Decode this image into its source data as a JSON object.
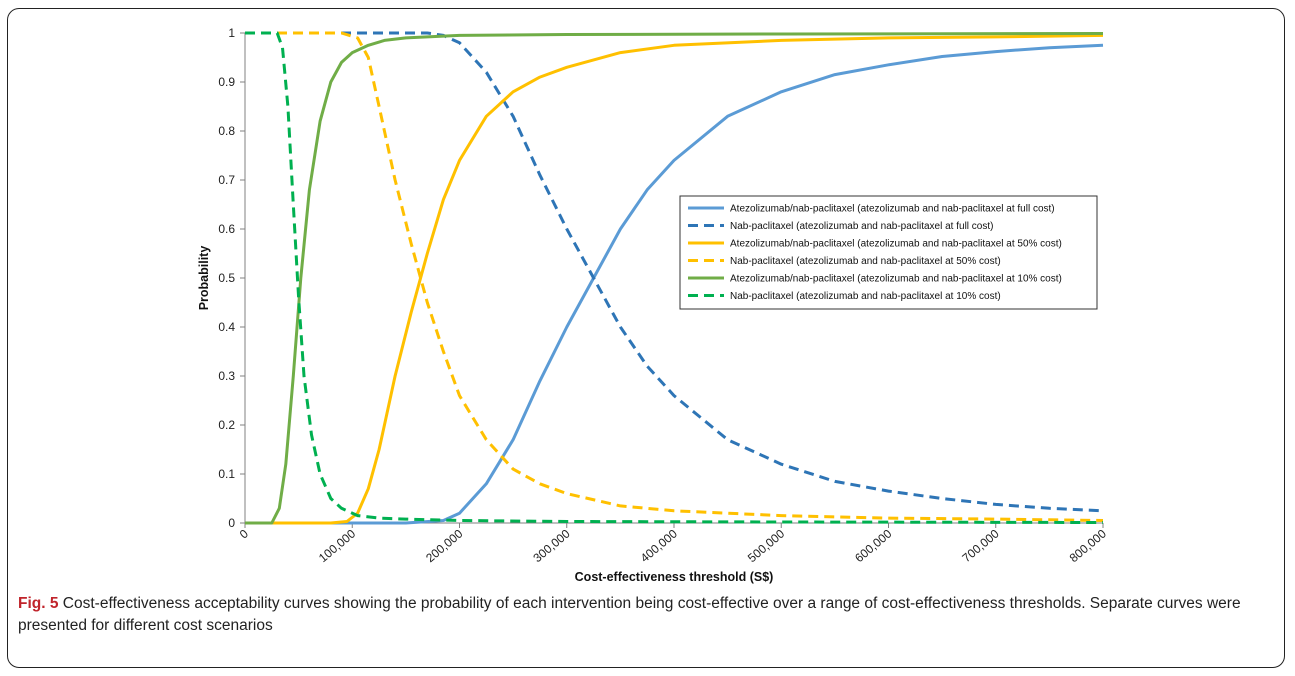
{
  "caption": {
    "label": "Fig. 5",
    "text": "Cost-effectiveness acceptability curves showing the probability of each intervention being cost-effective over a range of cost-effectiveness thresholds. Separate curves were presented for different cost scenarios"
  },
  "chart_data": {
    "type": "line",
    "title": "",
    "xlabel": "Cost-effectiveness threshold (S$)",
    "ylabel": "Probability",
    "xlim": [
      0,
      800000
    ],
    "ylim": [
      0,
      1
    ],
    "x_ticks": [
      0,
      100000,
      200000,
      300000,
      400000,
      500000,
      600000,
      700000,
      800000
    ],
    "x_tick_labels": [
      "0",
      "100,000",
      "200,000",
      "300,000",
      "400,000",
      "500,000",
      "600,000",
      "700,000",
      "800,000"
    ],
    "y_ticks": [
      0,
      0.1,
      0.2,
      0.3,
      0.4,
      0.5,
      0.6,
      0.7,
      0.8,
      0.9,
      1
    ],
    "y_tick_labels": [
      "0",
      "0.1",
      "0.2",
      "0.3",
      "0.4",
      "0.5",
      "0.6",
      "0.7",
      "0.8",
      "0.9",
      "1"
    ],
    "grid": false,
    "legend_position": "right",
    "series": [
      {
        "name": "Atezolizumab/nab-paclitaxel (atezolizumab and nab-paclitaxel at full cost)",
        "color": "#5b9bd5",
        "dashed": false,
        "points": [
          [
            0,
            0
          ],
          [
            150000,
            0
          ],
          [
            185000,
            0.005
          ],
          [
            200000,
            0.02
          ],
          [
            225000,
            0.08
          ],
          [
            250000,
            0.17
          ],
          [
            275000,
            0.29
          ],
          [
            300000,
            0.4
          ],
          [
            325000,
            0.5
          ],
          [
            350000,
            0.6
          ],
          [
            375000,
            0.68
          ],
          [
            400000,
            0.74
          ],
          [
            450000,
            0.83
          ],
          [
            500000,
            0.88
          ],
          [
            550000,
            0.915
          ],
          [
            600000,
            0.935
          ],
          [
            650000,
            0.952
          ],
          [
            700000,
            0.962
          ],
          [
            750000,
            0.97
          ],
          [
            800000,
            0.975
          ]
        ]
      },
      {
        "name": "Nab-paclitaxel (atezolizumab and nab-paclitaxel at full cost)",
        "color": "#2e75b6",
        "dashed": true,
        "points": [
          [
            0,
            1
          ],
          [
            170000,
            1
          ],
          [
            185000,
            0.995
          ],
          [
            200000,
            0.98
          ],
          [
            225000,
            0.92
          ],
          [
            250000,
            0.83
          ],
          [
            275000,
            0.71
          ],
          [
            300000,
            0.6
          ],
          [
            325000,
            0.5
          ],
          [
            350000,
            0.4
          ],
          [
            375000,
            0.32
          ],
          [
            400000,
            0.26
          ],
          [
            450000,
            0.17
          ],
          [
            500000,
            0.12
          ],
          [
            550000,
            0.085
          ],
          [
            600000,
            0.065
          ],
          [
            650000,
            0.05
          ],
          [
            700000,
            0.038
          ],
          [
            750000,
            0.03
          ],
          [
            800000,
            0.025
          ]
        ]
      },
      {
        "name": "Atezolizumab/nab-paclitaxel (atezolizumab and nab-paclitaxel at 50% cost)",
        "color": "#ffc000",
        "dashed": false,
        "points": [
          [
            0,
            0
          ],
          [
            80000,
            0
          ],
          [
            95000,
            0.003
          ],
          [
            105000,
            0.02
          ],
          [
            115000,
            0.07
          ],
          [
            125000,
            0.15
          ],
          [
            140000,
            0.3
          ],
          [
            155000,
            0.43
          ],
          [
            170000,
            0.55
          ],
          [
            185000,
            0.66
          ],
          [
            200000,
            0.74
          ],
          [
            225000,
            0.83
          ],
          [
            250000,
            0.88
          ],
          [
            275000,
            0.91
          ],
          [
            300000,
            0.93
          ],
          [
            350000,
            0.96
          ],
          [
            400000,
            0.975
          ],
          [
            500000,
            0.985
          ],
          [
            600000,
            0.99
          ],
          [
            700000,
            0.992
          ],
          [
            800000,
            0.995
          ]
        ]
      },
      {
        "name": "Nab-paclitaxel (atezolizumab and nab-paclitaxel at 50% cost)",
        "color": "#ffc000",
        "dashed": true,
        "points": [
          [
            0,
            1
          ],
          [
            90000,
            1
          ],
          [
            105000,
            0.99
          ],
          [
            115000,
            0.95
          ],
          [
            125000,
            0.85
          ],
          [
            140000,
            0.7
          ],
          [
            155000,
            0.57
          ],
          [
            170000,
            0.45
          ],
          [
            185000,
            0.35
          ],
          [
            200000,
            0.26
          ],
          [
            225000,
            0.17
          ],
          [
            250000,
            0.11
          ],
          [
            275000,
            0.08
          ],
          [
            300000,
            0.06
          ],
          [
            350000,
            0.035
          ],
          [
            400000,
            0.025
          ],
          [
            500000,
            0.015
          ],
          [
            600000,
            0.01
          ],
          [
            700000,
            0.008
          ],
          [
            800000,
            0.005
          ]
        ]
      },
      {
        "name": "Atezolizumab/nab-paclitaxel (atezolizumab and nab-paclitaxel at 10% cost)",
        "color": "#70ad47",
        "dashed": false,
        "points": [
          [
            0,
            0
          ],
          [
            25000,
            0
          ],
          [
            32000,
            0.03
          ],
          [
            38000,
            0.12
          ],
          [
            45000,
            0.3
          ],
          [
            52000,
            0.5
          ],
          [
            60000,
            0.68
          ],
          [
            70000,
            0.82
          ],
          [
            80000,
            0.9
          ],
          [
            90000,
            0.94
          ],
          [
            100000,
            0.96
          ],
          [
            115000,
            0.975
          ],
          [
            130000,
            0.985
          ],
          [
            150000,
            0.99
          ],
          [
            200000,
            0.995
          ],
          [
            300000,
            0.997
          ],
          [
            500000,
            0.998
          ],
          [
            800000,
            0.999
          ]
        ]
      },
      {
        "name": "Nab-paclitaxel (atezolizumab and nab-paclitaxel at 10% cost)",
        "color": "#00b050",
        "dashed": true,
        "points": [
          [
            0,
            1
          ],
          [
            30000,
            1
          ],
          [
            35000,
            0.97
          ],
          [
            40000,
            0.85
          ],
          [
            45000,
            0.65
          ],
          [
            50000,
            0.46
          ],
          [
            55000,
            0.3
          ],
          [
            62000,
            0.18
          ],
          [
            70000,
            0.1
          ],
          [
            80000,
            0.05
          ],
          [
            90000,
            0.03
          ],
          [
            105000,
            0.015
          ],
          [
            125000,
            0.01
          ],
          [
            150000,
            0.008
          ],
          [
            200000,
            0.005
          ],
          [
            300000,
            0.003
          ],
          [
            500000,
            0.002
          ],
          [
            800000,
            0.001
          ]
        ]
      }
    ]
  }
}
